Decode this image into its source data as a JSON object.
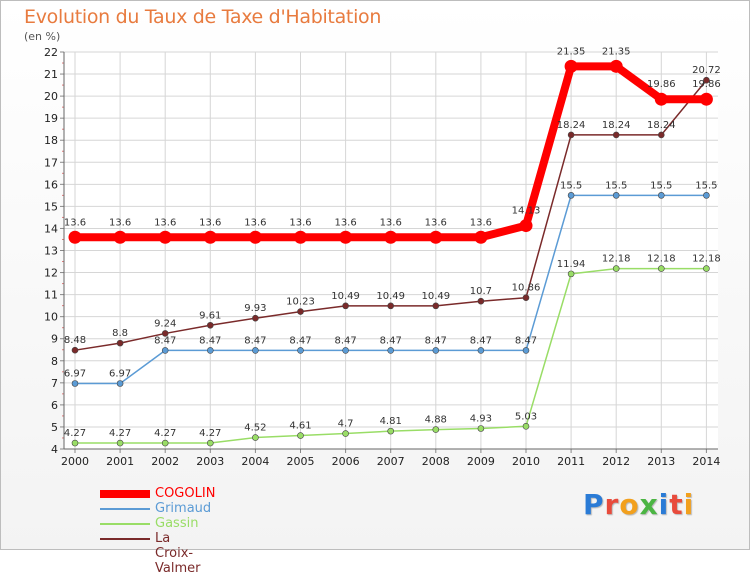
{
  "title": "Evolution du Taux de Taxe d'Habitation",
  "subtitle": "(en %)",
  "logo": {
    "text": "Proxiti",
    "letter_colors": [
      "#2a7bd6",
      "#e84b3c",
      "#f2a01d",
      "#4bb543",
      "#2a7bd6",
      "#e84b3c",
      "#f2a01d"
    ]
  },
  "chart_data": {
    "type": "line",
    "x": [
      "2000",
      "2001",
      "2002",
      "2003",
      "2004",
      "2005",
      "2006",
      "2007",
      "2008",
      "2009",
      "2010",
      "2011",
      "2012",
      "2013",
      "2014"
    ],
    "ylim": [
      4,
      22
    ],
    "yticks": [
      4,
      5,
      6,
      7,
      8,
      9,
      10,
      11,
      12,
      13,
      14,
      15,
      16,
      17,
      18,
      19,
      20,
      21,
      22
    ],
    "grid": true,
    "legend": "bottom-left",
    "series": [
      {
        "name": "COGOLIN",
        "color": "#ff0000",
        "emphasis": true,
        "values": [
          13.6,
          13.6,
          13.6,
          13.6,
          13.6,
          13.6,
          13.6,
          13.6,
          13.6,
          13.6,
          14.13,
          21.35,
          21.35,
          19.86,
          19.86
        ],
        "labels": [
          "13.6",
          "13.6",
          "13.6",
          "13.6",
          "13.6",
          "13.6",
          "13.6",
          "13.6",
          "13.6",
          "13.6",
          "14.13",
          "21.35",
          "21.35",
          "19.86",
          "19.86"
        ]
      },
      {
        "name": "Grimaud",
        "color": "#5b9bd5",
        "values": [
          6.97,
          6.97,
          8.47,
          8.47,
          8.47,
          8.47,
          8.47,
          8.47,
          8.47,
          8.47,
          8.47,
          15.5,
          15.5,
          15.5,
          15.5
        ],
        "labels": [
          "6.97",
          "6.97",
          "8.47",
          "8.47",
          "8.47",
          "8.47",
          "8.47",
          "8.47",
          "8.47",
          "8.47",
          "8.47",
          "15.5",
          "15.5",
          "15.5",
          "15.5"
        ]
      },
      {
        "name": "Gassin",
        "color": "#99dd66",
        "values": [
          4.27,
          4.27,
          4.27,
          4.27,
          4.52,
          4.61,
          4.7,
          4.81,
          4.88,
          4.93,
          5.03,
          11.94,
          12.18,
          12.18,
          12.18
        ],
        "labels": [
          "4.27",
          "4.27",
          "4.27",
          "4.27",
          "4.52",
          "4.61",
          "4.7",
          "4.81",
          "4.88",
          "4.93",
          "5.03",
          "11.94",
          "12.18",
          "12.18",
          "12.18"
        ]
      },
      {
        "name": "La Croix-Valmer",
        "color": "#7a2a2a",
        "values": [
          8.48,
          8.8,
          9.24,
          9.61,
          9.93,
          10.23,
          10.49,
          10.49,
          10.49,
          10.7,
          10.86,
          18.24,
          18.24,
          18.24,
          20.72
        ],
        "labels": [
          "8.48",
          "8.8",
          "9.24",
          "9.61",
          "9.93",
          "10.23",
          "10.49",
          "10.49",
          "10.49",
          "10.7",
          "10.86",
          "18.24",
          "18.24",
          "18.24",
          "20.72"
        ]
      }
    ]
  }
}
